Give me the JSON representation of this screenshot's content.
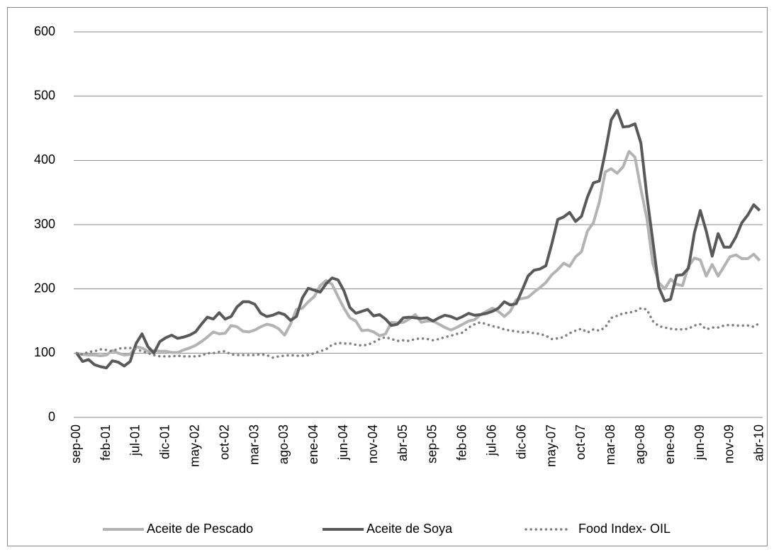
{
  "chart_data": {
    "type": "line",
    "categories": [
      "sep-00",
      null,
      null,
      null,
      null,
      "feb-01",
      null,
      null,
      null,
      null,
      "jul-01",
      null,
      null,
      null,
      null,
      "dic-01",
      null,
      null,
      null,
      null,
      "may-02",
      null,
      null,
      null,
      null,
      "oct-02",
      null,
      null,
      null,
      null,
      "mar-03",
      null,
      null,
      null,
      null,
      "ago-03",
      null,
      null,
      null,
      null,
      "ene-04",
      null,
      null,
      null,
      null,
      "jun-04",
      null,
      null,
      null,
      null,
      "nov-04",
      null,
      null,
      null,
      null,
      "abr-05",
      null,
      null,
      null,
      null,
      "sep-05",
      null,
      null,
      null,
      null,
      "feb-06",
      null,
      null,
      null,
      null,
      "jul-06",
      null,
      null,
      null,
      null,
      "dic-06",
      null,
      null,
      null,
      null,
      "may-07",
      null,
      null,
      null,
      null,
      "oct-07",
      null,
      null,
      null,
      null,
      "mar-08",
      null,
      null,
      null,
      null,
      "ago-08",
      null,
      null,
      null,
      null,
      "ene-09",
      null,
      null,
      null,
      null,
      "jun-09",
      null,
      null,
      null,
      null,
      "nov-09",
      null,
      null,
      null,
      null,
      "abr-10"
    ],
    "series": [
      {
        "name": "Aceite de Pescado",
        "color": "#b3b3b3",
        "dash": false,
        "values": [
          100,
          98,
          97,
          97,
          96,
          97,
          104,
          100,
          97,
          98,
          110,
          108,
          103,
          104,
          103,
          103,
          101,
          101,
          105,
          108,
          112,
          118,
          125,
          133,
          130,
          131,
          143,
          141,
          134,
          133,
          136,
          141,
          145,
          143,
          138,
          128,
          145,
          168,
          170,
          180,
          188,
          205,
          213,
          207,
          188,
          170,
          155,
          150,
          135,
          136,
          133,
          127,
          130,
          148,
          147,
          148,
          153,
          160,
          148,
          150,
          150,
          145,
          140,
          136,
          140,
          145,
          150,
          152,
          160,
          165,
          170,
          165,
          157,
          165,
          183,
          185,
          187,
          195,
          202,
          210,
          222,
          230,
          240,
          235,
          250,
          258,
          290,
          303,
          335,
          382,
          387,
          380,
          390,
          414,
          405,
          355,
          310,
          240,
          210,
          200,
          215,
          207,
          205,
          235,
          248,
          245,
          220,
          238,
          220,
          235,
          250,
          253,
          247,
          247,
          254,
          244
        ]
      },
      {
        "name": "Aceite de Soya",
        "color": "#595959",
        "dash": false,
        "values": [
          100,
          87,
          90,
          82,
          79,
          77,
          88,
          86,
          80,
          87,
          115,
          130,
          110,
          100,
          118,
          124,
          128,
          123,
          125,
          128,
          133,
          145,
          156,
          153,
          163,
          153,
          157,
          172,
          180,
          180,
          176,
          162,
          157,
          159,
          163,
          160,
          151,
          157,
          186,
          201,
          198,
          195,
          208,
          217,
          214,
          197,
          171,
          162,
          165,
          168,
          158,
          160,
          153,
          143,
          145,
          155,
          156,
          155,
          154,
          155,
          150,
          155,
          159,
          157,
          153,
          157,
          162,
          159,
          160,
          162,
          165,
          170,
          180,
          175,
          177,
          198,
          220,
          229,
          231,
          236,
          270,
          308,
          312,
          319,
          305,
          313,
          343,
          365,
          368,
          413,
          463,
          478,
          452,
          453,
          457,
          427,
          345,
          275,
          203,
          181,
          184,
          221,
          222,
          232,
          287,
          322,
          290,
          251,
          286,
          265,
          265,
          281,
          303,
          315,
          331,
          322
        ]
      },
      {
        "name": "Food Index- OIL",
        "color": "#808080",
        "dash": true,
        "values": [
          100,
          98,
          102,
          103,
          106,
          105,
          103,
          107,
          108,
          108,
          106,
          103,
          100,
          97,
          95,
          95,
          95,
          96,
          95,
          95,
          95,
          96,
          100,
          100,
          102,
          103,
          98,
          97,
          97,
          97,
          97,
          98,
          97,
          93,
          95,
          96,
          97,
          96,
          96,
          97,
          100,
          103,
          106,
          113,
          116,
          115,
          115,
          113,
          112,
          113,
          117,
          122,
          125,
          122,
          119,
          120,
          119,
          122,
          123,
          122,
          120,
          122,
          125,
          127,
          130,
          132,
          140,
          145,
          148,
          145,
          142,
          140,
          137,
          135,
          134,
          132,
          133,
          131,
          130,
          127,
          122,
          123,
          125,
          131,
          135,
          138,
          132,
          137,
          135,
          140,
          155,
          158,
          162,
          163,
          165,
          170,
          168,
          150,
          142,
          140,
          138,
          137,
          137,
          138,
          143,
          145,
          137,
          140,
          140,
          143,
          144,
          143,
          143,
          143,
          141,
          147
        ]
      }
    ],
    "ylim": [
      0,
      600
    ],
    "yticks": [
      0,
      100,
      200,
      300,
      400,
      500,
      600
    ],
    "grid": true,
    "legend": "bottom"
  }
}
